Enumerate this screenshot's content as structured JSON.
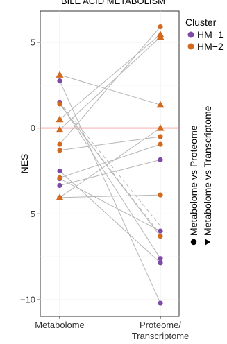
{
  "chart_data": {
    "type": "scatter",
    "title": "BILE ACID METABOLISM",
    "xlabel": "",
    "ylabel": "NES",
    "categories": [
      "Metabolome",
      "Proteome/\nTranscriptome"
    ],
    "ylim": [
      -11,
      6.5
    ],
    "y_ticks": [
      5,
      0,
      -5,
      -10
    ],
    "y_tick_labels": [
      "5",
      "0",
      "−5",
      "−10"
    ],
    "grid": true,
    "reference_line": {
      "y": 0,
      "color": "#f08080"
    },
    "legend": {
      "title": "Cluster",
      "items": [
        {
          "label": "HM−1",
          "color": "#7e4aa6"
        },
        {
          "label": "HM−2",
          "color": "#d2691e"
        }
      ],
      "shape_items": [
        {
          "label": "Metabolome vs Proteome",
          "shape": "circle"
        },
        {
          "label": "Metabolome vs Transcriptome",
          "shape": "triangle"
        }
      ]
    },
    "series": [
      {
        "cluster": "HM-1",
        "comparison": "proteome",
        "values": [
          2.75,
          -10.2
        ]
      },
      {
        "cluster": "HM-1",
        "comparison": "proteome",
        "values": [
          1.5,
          -7.6
        ]
      },
      {
        "cluster": "HM-1",
        "comparison": "proteome",
        "values": [
          -2.5,
          -7.85
        ]
      },
      {
        "cluster": "HM-1",
        "comparison": "proteome",
        "values": [
          -2.95,
          -6.0
        ]
      },
      {
        "cluster": "HM-1",
        "comparison": "proteome",
        "values": [
          -3.35,
          -1.85
        ]
      },
      {
        "cluster": "HM-2",
        "comparison": "proteome",
        "values": [
          1.4,
          -6.3
        ]
      },
      {
        "cluster": "HM-2",
        "comparison": "proteome",
        "values": [
          -0.95,
          5.9
        ]
      },
      {
        "cluster": "HM-2",
        "comparison": "proteome",
        "values": [
          -1.3,
          -0.5
        ]
      },
      {
        "cluster": "HM-2",
        "comparison": "proteome",
        "values": [
          -2.9,
          -0.95
        ]
      },
      {
        "cluster": "HM-2",
        "comparison": "proteome",
        "values": [
          -4.05,
          -3.9
        ]
      },
      {
        "cluster": "HM-2",
        "comparison": "transcriptome",
        "values": [
          3.1,
          1.35
        ]
      },
      {
        "cluster": "HM-2",
        "comparison": "transcriptome",
        "values": [
          0.5,
          5.45
        ]
      },
      {
        "cluster": "HM-2",
        "comparison": "transcriptome",
        "values": [
          -0.1,
          5.3
        ]
      },
      {
        "cluster": "HM-2",
        "comparison": "transcriptome",
        "values": [
          -4.05,
          0.0
        ]
      }
    ],
    "dashed_connectors": [
      {
        "values": [
          1.5,
          -5.7
        ]
      },
      {
        "values": [
          1.4,
          -6.2
        ]
      }
    ]
  }
}
